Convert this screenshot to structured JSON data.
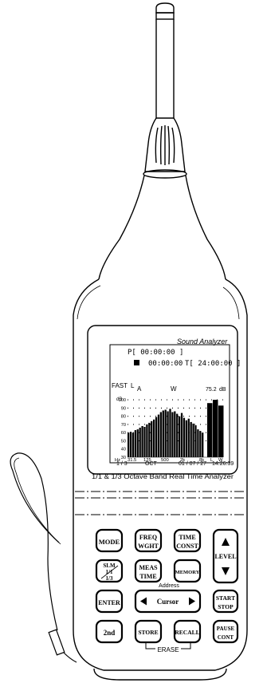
{
  "device": {
    "brand_label": "Sound Analyzer",
    "footer_label": "1/1 & 1/3 Octave Band Real Time Analyzer"
  },
  "screen": {
    "p_label": "P[ 00:00:00 ]",
    "time_elapsed": "00:00:00",
    "t_label": "T[ 24:00:00 ]",
    "response": "FAST",
    "level_letter": "L",
    "weight_a": "A",
    "weight_w": "W",
    "level_value": "75.2",
    "level_unit": "dB",
    "band_mode": "1 / 3",
    "band_label": "OCT",
    "date": "01 / 07 / 27",
    "clock": "14:26:39"
  },
  "chart_data": {
    "type": "bar",
    "ylabel": "dB",
    "y_ticks": [
      100,
      90,
      80,
      70,
      60,
      50,
      40,
      30
    ],
    "ylim": [
      30,
      105
    ],
    "x_tick_labels": [
      "Hz",
      "31.5",
      "125",
      "500",
      "2k",
      "8k",
      "L",
      "W"
    ],
    "values": [
      60,
      61,
      60,
      63,
      64,
      66,
      68,
      67,
      70,
      72,
      74,
      76,
      79,
      82,
      85,
      87,
      88,
      86,
      89,
      85,
      86,
      83,
      80,
      84,
      78,
      75,
      77,
      73,
      71,
      69,
      64,
      62,
      60
    ],
    "overall_values": [
      96,
      100,
      93
    ]
  },
  "buttons": {
    "mode": "MODE",
    "freq_top": "FREQ",
    "freq_bottom": "WGHT",
    "time_top": "TIME",
    "time_bottom": "CONST",
    "level": "LEVEL",
    "slm": "SLM",
    "slm_mid": "1/1",
    "slm_bottom": "1/3",
    "meas_top": "MEAS",
    "meas_bottom": "TIME",
    "memory": "MEMORY",
    "address": "Address",
    "enter": "ENTER",
    "cursor": "Cursor",
    "start": "START",
    "stop": "STOP",
    "second": "2nd",
    "store": "STORE",
    "recall": "RECALL",
    "pause": "PAUSE",
    "cont": "CONT",
    "erase": "ERASE"
  }
}
